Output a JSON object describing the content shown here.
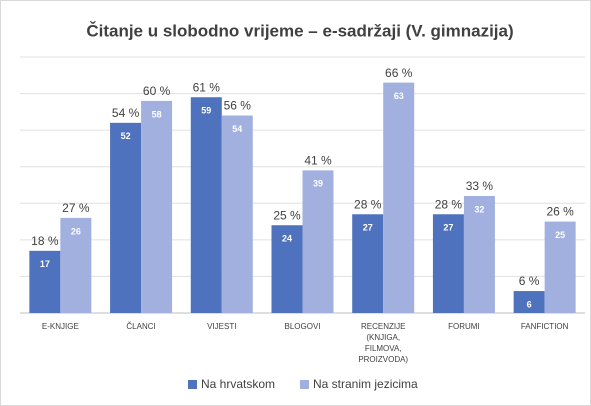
{
  "chart_data": {
    "type": "bar",
    "title": "Čitanje u slobodno vrijeme – e-sadržaji (V. gimnazija)",
    "categories": [
      "E-KNJIGE",
      "ČLANCI",
      "VIJESTI",
      "BLOGOVI",
      "RECENZIJE (KNJIGA, FILMOVA, PROIZVODA)",
      "FORUMI",
      "FANFICTION"
    ],
    "series": [
      {
        "name": "Na hrvatskom",
        "color": "#4f72be",
        "values": [
          17,
          52,
          59,
          24,
          27,
          27,
          6
        ],
        "percent_labels": [
          "18 %",
          "54 %",
          "61 %",
          "25 %",
          "28 %",
          "28 %",
          "6 %"
        ]
      },
      {
        "name": "Na stranim jezicima",
        "color": "#a2b0e0",
        "values": [
          26,
          58,
          54,
          39,
          63,
          32,
          25
        ],
        "percent_labels": [
          "27 %",
          "60 %",
          "56 %",
          "41 %",
          "66 %",
          "33 %",
          "26 %"
        ]
      }
    ],
    "ylim": [
      0,
      70
    ],
    "yticks": [
      0,
      10,
      20,
      30,
      40,
      50,
      60,
      70
    ],
    "grid": true,
    "legend": "bottom"
  }
}
